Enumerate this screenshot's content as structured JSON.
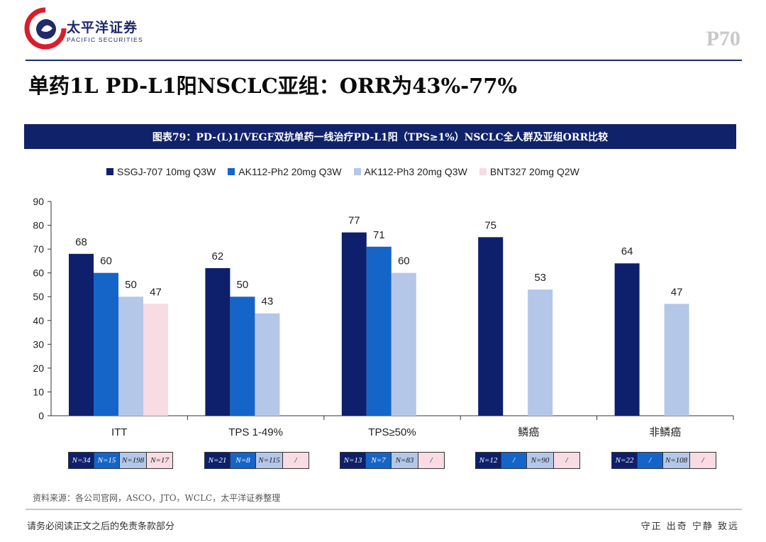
{
  "header": {
    "company_cn": "太平洋证券",
    "company_en": "PACIFIC SECURITIES",
    "page_number": "P70"
  },
  "title": "单药1L PD-L1阳NSCLC亚组：ORR为43%-77%",
  "figure_title": "图表79：PD-(L)1/VEGF双抗单药一线治疗PD-L1阳（TPS≥1%）NSCLC全人群及亚组ORR比较",
  "colors": {
    "brand_navy": "#1b2d6e",
    "series": [
      "#0e1f6b",
      "#1565c9",
      "#b4c7e8",
      "#f8dbe3"
    ]
  },
  "chart_data": {
    "type": "bar",
    "categories": [
      "ITT",
      "TPS 1-49%",
      "TPS≥50%",
      "鳞癌",
      "非鳞癌"
    ],
    "series": [
      {
        "name": "SSGJ-707 10mg Q3W",
        "values": [
          68,
          62,
          77,
          75,
          64
        ]
      },
      {
        "name": "AK112-Ph2 20mg Q3W",
        "values": [
          60,
          50,
          71,
          null,
          null
        ]
      },
      {
        "name": "AK112-Ph3 20mg Q3W",
        "values": [
          50,
          43,
          60,
          53,
          47
        ]
      },
      {
        "name": "BNT327 20mg Q2W",
        "values": [
          47,
          null,
          null,
          null,
          null
        ]
      }
    ],
    "ylim": [
      0,
      90
    ],
    "yticks": [
      0,
      10,
      20,
      30,
      40,
      50,
      60,
      70,
      80,
      90
    ],
    "legend_position": "top",
    "grid": false,
    "data_labels": true,
    "sample_sizes": [
      [
        "N=34",
        "N=15",
        "N=198",
        "N=17"
      ],
      [
        "N=21",
        "N=8",
        "N=115",
        "/"
      ],
      [
        "N=13",
        "N=7",
        "N=83",
        "/"
      ],
      [
        "N=12",
        "/",
        "N=90",
        "/"
      ],
      [
        "N=22",
        "/",
        "N=108",
        "/"
      ]
    ]
  },
  "footer": {
    "source": "资料来源：各公司官网，ASCO，JTO，WCLC，太平洋证券整理",
    "disclaimer": "请务必阅读正文之后的免责条款部分",
    "motto": "守正 出奇 宁静 致远"
  }
}
